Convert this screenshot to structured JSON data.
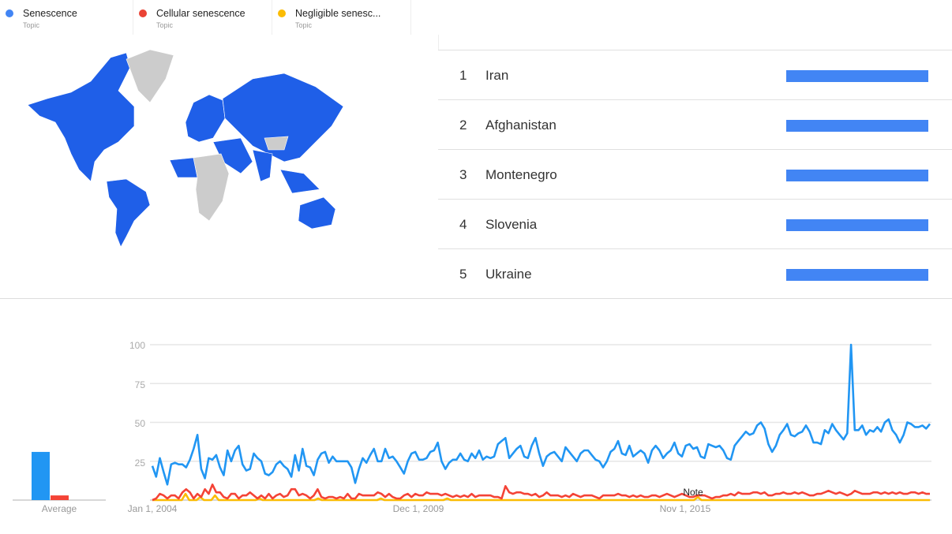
{
  "legend": [
    {
      "name": "Senescence",
      "type": "Topic",
      "color": "#4285f4"
    },
    {
      "name": "Cellular senescence",
      "type": "Topic",
      "color": "#ea4335"
    },
    {
      "name": "Negligible senesc...",
      "type": "Topic",
      "color": "#fbbc04"
    }
  ],
  "map": {
    "highlight_color": "#1f5fe8",
    "no_data_color": "#cccccc"
  },
  "regions": [
    {
      "rank": "1",
      "name": "Iran",
      "value": 100
    },
    {
      "rank": "2",
      "name": "Afghanistan",
      "value": 100
    },
    {
      "rank": "3",
      "name": "Montenegro",
      "value": 100
    },
    {
      "rank": "4",
      "name": "Slovenia",
      "value": 100
    },
    {
      "rank": "5",
      "name": "Ukraine",
      "value": 100
    }
  ],
  "chart_data": {
    "type": "line",
    "x_start": "Jan 1, 2004",
    "x_frequency": "monthly",
    "x_tick_labels": [
      "Jan 1, 2004",
      "Dec 1, 2009",
      "Nov 1, 2015"
    ],
    "y_tick_labels": [
      "25",
      "50",
      "75",
      "100"
    ],
    "ylim": [
      0,
      100
    ],
    "grid": true,
    "annotation": "Note",
    "average_label": "Average",
    "average": [
      31,
      3,
      0
    ],
    "series": [
      {
        "name": "Senescence",
        "color": "#2196f3",
        "values": [
          22,
          15,
          27,
          18,
          10,
          23,
          24,
          23,
          23,
          21,
          26,
          33,
          42,
          20,
          14,
          27,
          26,
          29,
          21,
          16,
          32,
          25,
          32,
          35,
          23,
          19,
          20,
          30,
          27,
          25,
          17,
          16,
          18,
          23,
          25,
          22,
          20,
          15,
          29,
          19,
          33,
          22,
          21,
          16,
          26,
          30,
          31,
          24,
          28,
          25,
          25,
          25,
          25,
          21,
          11,
          20,
          27,
          24,
          29,
          33,
          25,
          25,
          33,
          27,
          28,
          25,
          21,
          17,
          25,
          30,
          31,
          26,
          26,
          27,
          31,
          32,
          37,
          25,
          20,
          24,
          26,
          26,
          30,
          26,
          25,
          30,
          27,
          32,
          26,
          28,
          27,
          28,
          36,
          38,
          40,
          27,
          30,
          33,
          35,
          28,
          27,
          35,
          40,
          30,
          22,
          28,
          30,
          31,
          28,
          25,
          34,
          31,
          28,
          25,
          30,
          32,
          32,
          29,
          26,
          25,
          21,
          25,
          31,
          33,
          38,
          30,
          29,
          35,
          28,
          30,
          32,
          30,
          24,
          32,
          35,
          32,
          27,
          30,
          32,
          37,
          30,
          28,
          35,
          36,
          33,
          34,
          28,
          27,
          36,
          35,
          34,
          35,
          32,
          27,
          26,
          35,
          38,
          41,
          44,
          42,
          43,
          48,
          50,
          46,
          36,
          31,
          35,
          42,
          45,
          49,
          42,
          41,
          43,
          44,
          48,
          44,
          37,
          37,
          36,
          45,
          43,
          49,
          45,
          42,
          39,
          43,
          100,
          45,
          45,
          48,
          42,
          45,
          44,
          47,
          44,
          50,
          52,
          45,
          42,
          37,
          42,
          50,
          49,
          47,
          47,
          48,
          46,
          49
        ]
      },
      {
        "name": "Cellular senescence",
        "color": "#f44336",
        "values": [
          0,
          1,
          4,
          3,
          1,
          3,
          3,
          1,
          5,
          7,
          5,
          1,
          4,
          2,
          7,
          4,
          10,
          5,
          5,
          2,
          1,
          4,
          4,
          1,
          3,
          3,
          5,
          3,
          1,
          3,
          1,
          4,
          1,
          3,
          4,
          2,
          3,
          7,
          7,
          3,
          4,
          3,
          1,
          3,
          7,
          2,
          1,
          2,
          2,
          1,
          2,
          1,
          4,
          1,
          1,
          4,
          3,
          3,
          3,
          3,
          5,
          4,
          2,
          4,
          2,
          1,
          1,
          3,
          4,
          2,
          4,
          3,
          3,
          5,
          4,
          4,
          4,
          3,
          4,
          3,
          2,
          3,
          2,
          3,
          2,
          4,
          2,
          3,
          3,
          3,
          3,
          2,
          2,
          1,
          9,
          5,
          4,
          5,
          5,
          4,
          4,
          3,
          4,
          2,
          3,
          5,
          3,
          3,
          3,
          2,
          3,
          2,
          4,
          3,
          2,
          3,
          3,
          3,
          2,
          1,
          3,
          3,
          3,
          3,
          4,
          3,
          3,
          2,
          3,
          2,
          3,
          2,
          2,
          3,
          3,
          2,
          3,
          4,
          3,
          2,
          3,
          4,
          3,
          2,
          2,
          3,
          3,
          3,
          2,
          1,
          2,
          2,
          3,
          3,
          4,
          3,
          5,
          4,
          4,
          4,
          5,
          5,
          4,
          5,
          3,
          3,
          4,
          4,
          5,
          4,
          4,
          5,
          4,
          5,
          4,
          3,
          3,
          4,
          4,
          5,
          6,
          5,
          4,
          5,
          4,
          3,
          4,
          6,
          5,
          4,
          4,
          4,
          5,
          5,
          4,
          5,
          4,
          5,
          4,
          5,
          4,
          4,
          5,
          5,
          4,
          5,
          4,
          4
        ]
      },
      {
        "name": "Negligible senescence",
        "color": "#fbbc04",
        "values": [
          0,
          0,
          0,
          0,
          0,
          0,
          0,
          0,
          0,
          4,
          0,
          0,
          0,
          2,
          0,
          0,
          0,
          3,
          0,
          0,
          0,
          0,
          0,
          0,
          0,
          0,
          0,
          0,
          0,
          1,
          0,
          0,
          0,
          0,
          0,
          0,
          0,
          0,
          0,
          0,
          0,
          0,
          0,
          0,
          0,
          1,
          0,
          0,
          0,
          0,
          0,
          0,
          0,
          0,
          0,
          0,
          0,
          0,
          0,
          0,
          0,
          0,
          1,
          0,
          0,
          0,
          0,
          0,
          0,
          0,
          0,
          0,
          0,
          0,
          0,
          0,
          0,
          0,
          0,
          0,
          1,
          0,
          0,
          0,
          0,
          0,
          0,
          0,
          0,
          0,
          0,
          0,
          0,
          0,
          0,
          0,
          0,
          0,
          0,
          0,
          0,
          0,
          0,
          0,
          0,
          0,
          0,
          0,
          0,
          0,
          0,
          0,
          0,
          0,
          0,
          0,
          0,
          0,
          0,
          0,
          0,
          0,
          0,
          0,
          0,
          0,
          0,
          0,
          0,
          0,
          0,
          0,
          0,
          0,
          0,
          0,
          0,
          0,
          0,
          0,
          0,
          0,
          0,
          0,
          0,
          0,
          0,
          0,
          2,
          0,
          0,
          0,
          0,
          0,
          0,
          0,
          0,
          0,
          0,
          0,
          0,
          0,
          0,
          0,
          0,
          0,
          0,
          0,
          0,
          0,
          0,
          0,
          0,
          0,
          0,
          0,
          0,
          0,
          0,
          0,
          0,
          0,
          0,
          0,
          0,
          0,
          0,
          0,
          0,
          0,
          0,
          0,
          0,
          0,
          0,
          0,
          0,
          0,
          0,
          0,
          0,
          0,
          0,
          0,
          0,
          0,
          0,
          0,
          0,
          0,
          0,
          0
        ]
      }
    ]
  }
}
